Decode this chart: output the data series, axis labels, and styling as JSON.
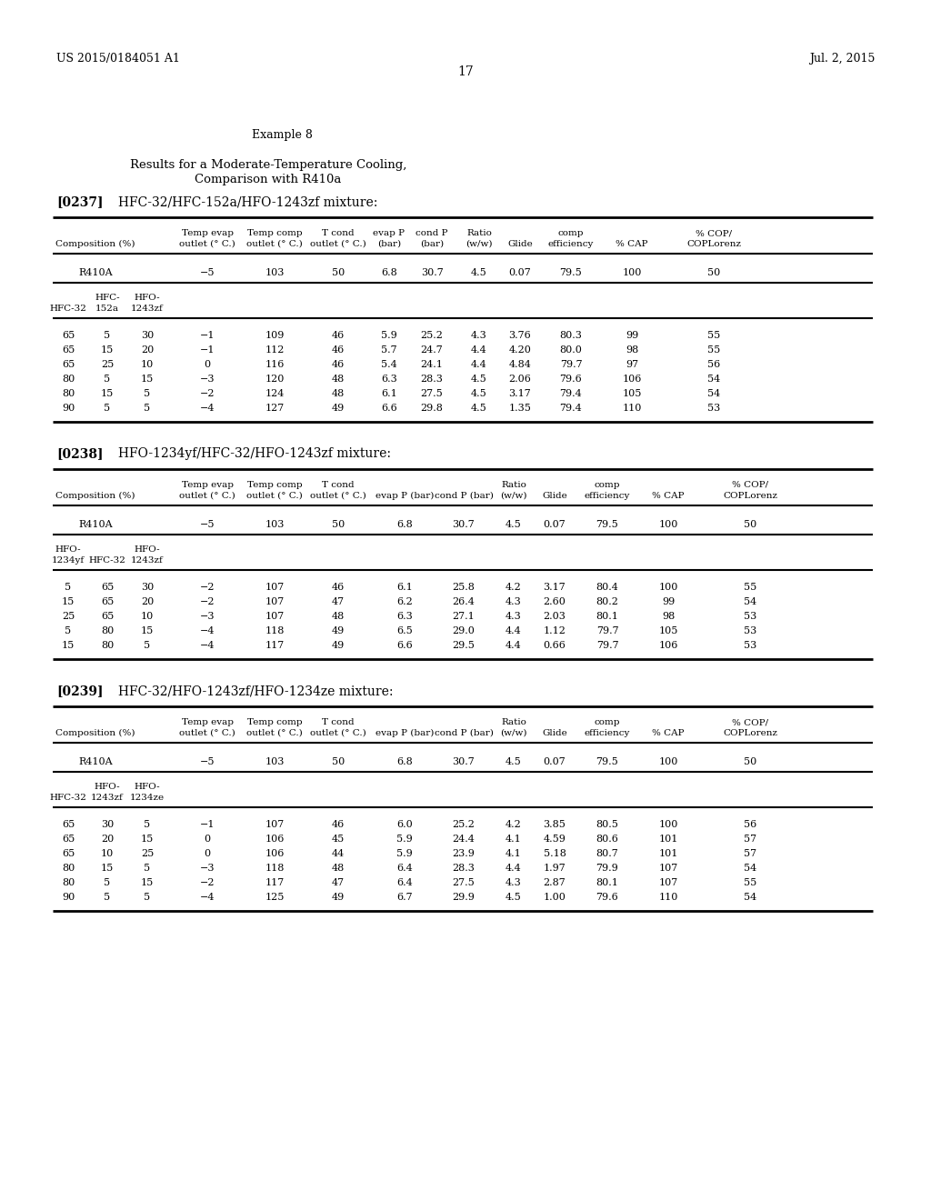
{
  "page_number": "17",
  "patent_left": "US 2015/0184051 A1",
  "patent_right": "Jul. 2, 2015",
  "example_label": "Example 8",
  "subtitle_line1": "Results for a Moderate-Temperature Cooling,",
  "subtitle_line2": "Comparison with R410a",
  "section1_label": "[0237]",
  "section1_title": "HFC-32/HFC-152a/HFO-1243zf mixture:",
  "section2_label": "[0238]",
  "section2_title": "HFO-1234yf/HFC-32/HFO-1243zf mixture:",
  "section3_label": "[0239]",
  "section3_title": "HFC-32/HFO-1243zf/HFO-1234ze mixture:",
  "table1_data": [
    [
      "65",
      "5",
      "30",
      "−1",
      "109",
      "46",
      "5.9",
      "25.2",
      "4.3",
      "3.76",
      "80.3",
      "99",
      "55"
    ],
    [
      "65",
      "15",
      "20",
      "−1",
      "112",
      "46",
      "5.7",
      "24.7",
      "4.4",
      "4.20",
      "80.0",
      "98",
      "55"
    ],
    [
      "65",
      "25",
      "10",
      "0",
      "116",
      "46",
      "5.4",
      "24.1",
      "4.4",
      "4.84",
      "79.7",
      "97",
      "56"
    ],
    [
      "80",
      "5",
      "15",
      "−3",
      "120",
      "48",
      "6.3",
      "28.3",
      "4.5",
      "2.06",
      "79.6",
      "106",
      "54"
    ],
    [
      "80",
      "15",
      "5",
      "−2",
      "124",
      "48",
      "6.1",
      "27.5",
      "4.5",
      "3.17",
      "79.4",
      "105",
      "54"
    ],
    [
      "90",
      "5",
      "5",
      "−4",
      "127",
      "49",
      "6.6",
      "29.8",
      "4.5",
      "1.35",
      "79.4",
      "110",
      "53"
    ]
  ],
  "table2_data": [
    [
      "5",
      "65",
      "30",
      "−2",
      "107",
      "46",
      "6.1",
      "25.8",
      "4.2",
      "3.17",
      "80.4",
      "100",
      "55"
    ],
    [
      "15",
      "65",
      "20",
      "−2",
      "107",
      "47",
      "6.2",
      "26.4",
      "4.3",
      "2.60",
      "80.2",
      "99",
      "54"
    ],
    [
      "25",
      "65",
      "10",
      "−3",
      "107",
      "48",
      "6.3",
      "27.1",
      "4.3",
      "2.03",
      "80.1",
      "98",
      "53"
    ],
    [
      "5",
      "80",
      "15",
      "−4",
      "118",
      "49",
      "6.5",
      "29.0",
      "4.4",
      "1.12",
      "79.7",
      "105",
      "53"
    ],
    [
      "15",
      "80",
      "5",
      "−4",
      "117",
      "49",
      "6.6",
      "29.5",
      "4.4",
      "0.66",
      "79.7",
      "106",
      "53"
    ]
  ],
  "table3_data": [
    [
      "65",
      "30",
      "5",
      "−1",
      "107",
      "46",
      "6.0",
      "25.2",
      "4.2",
      "3.85",
      "80.5",
      "100",
      "56"
    ],
    [
      "65",
      "20",
      "15",
      "0",
      "106",
      "45",
      "5.9",
      "24.4",
      "4.1",
      "4.59",
      "80.6",
      "101",
      "57"
    ],
    [
      "65",
      "10",
      "25",
      "0",
      "106",
      "44",
      "5.9",
      "23.9",
      "4.1",
      "5.18",
      "80.7",
      "101",
      "57"
    ],
    [
      "80",
      "15",
      "5",
      "−3",
      "118",
      "48",
      "6.4",
      "28.3",
      "4.4",
      "1.97",
      "79.9",
      "107",
      "54"
    ],
    [
      "80",
      "5",
      "15",
      "−2",
      "117",
      "47",
      "6.4",
      "27.5",
      "4.3",
      "2.87",
      "80.1",
      "107",
      "55"
    ],
    [
      "90",
      "5",
      "5",
      "−4",
      "125",
      "49",
      "6.7",
      "29.9",
      "4.5",
      "1.00",
      "79.6",
      "110",
      "54"
    ]
  ]
}
